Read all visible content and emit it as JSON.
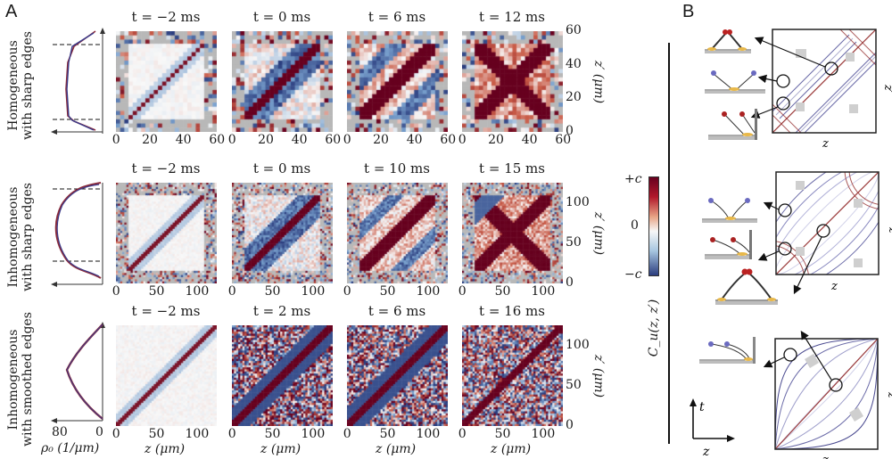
{
  "figure": {
    "panel_a_label": "A",
    "panel_b_label": "B"
  },
  "chart_data": [
    {
      "type": "heatmap",
      "title": "Homogeneous with sharp edges",
      "row_label": [
        "Homogeneous",
        "with sharp edges"
      ],
      "times": [
        "t = −2 ms",
        "t = 0 ms",
        "t = 6 ms",
        "t = 12 ms"
      ],
      "xticks": [
        "0",
        "20",
        "40",
        "60"
      ],
      "yticks": [
        "0",
        "20",
        "40",
        "60"
      ],
      "xlim": [
        0,
        60
      ],
      "ylim": [
        0,
        60
      ],
      "ylabel": "z′ (μm)",
      "profile_shape": "flat",
      "pattern": [
        "diag-thin",
        "diag-anti-blue",
        "diag-wide-blue",
        "x-red"
      ]
    },
    {
      "type": "heatmap",
      "title": "Inhomogeneous with sharp edges",
      "row_label": [
        "Inhomogeneous",
        "with sharp edges"
      ],
      "times": [
        "t = −2 ms",
        "t = 0 ms",
        "t = 10 ms",
        "t = 15 ms"
      ],
      "xticks": [
        "0",
        "50",
        "100"
      ],
      "yticks": [
        "0",
        "50",
        "100"
      ],
      "xlim": [
        0,
        125
      ],
      "ylim": [
        0,
        125
      ],
      "ylabel": "z′ (μm)",
      "profile_shape": "parabola-cut",
      "pattern": [
        "diag-thin",
        "diag-anti-blue",
        "diag-wide-blue",
        "x-red"
      ]
    },
    {
      "type": "heatmap",
      "title": "Inhomogeneous with smoothed edges",
      "row_label": [
        "Inhomogeneous",
        "with smoothed edges"
      ],
      "times": [
        "t = −2 ms",
        "t = 2 ms",
        "t = 6 ms",
        "t = 16 ms"
      ],
      "xticks": [
        "0",
        "50",
        "100"
      ],
      "yticks": [
        "0",
        "50",
        "100"
      ],
      "xlim": [
        0,
        125
      ],
      "ylim": [
        0,
        125
      ],
      "xlabel": "z (μm)",
      "ylabel": "z′ (μm)",
      "profile_xticks": [
        "80",
        "0"
      ],
      "profile_xlabel": "ρ₀ (1/μm)",
      "profile_shape": "parabola",
      "pattern": [
        "diag-thin",
        "noisy-anti",
        "noisy-anti",
        "noisy-diag"
      ]
    }
  ],
  "colorbar": {
    "top_label": "+c",
    "mid_label": "0",
    "bottom_label": "−c",
    "label": "C_u(z, z′)",
    "colors": {
      "high": "#67001f",
      "mid": "#f7f7f7",
      "low": "#2b3d7e"
    }
  },
  "panel_b": {
    "axis_labels": {
      "x": "z",
      "y": "z′"
    },
    "time_axis": {
      "t": "t",
      "z": "z"
    }
  },
  "colors": {
    "red": "#7a0f1a",
    "blue": "#2f4f8f",
    "gray": "#b8b8b8",
    "purple_line": "#6b6ba8",
    "red_line": "#9b3a3a"
  }
}
